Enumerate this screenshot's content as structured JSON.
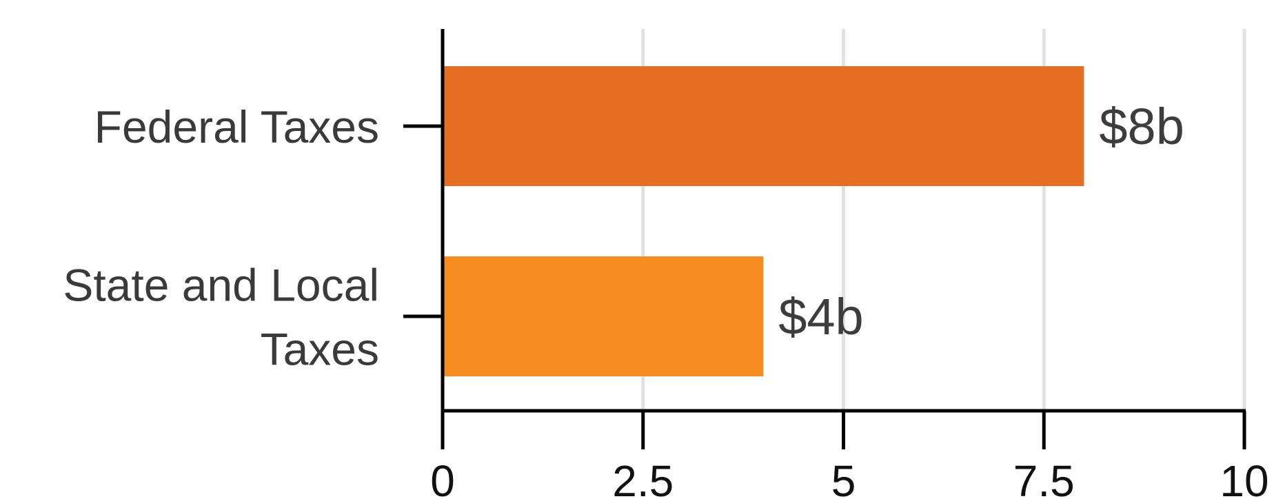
{
  "chart_data": {
    "type": "bar",
    "orientation": "horizontal",
    "categories": [
      [
        "Federal Taxes"
      ],
      [
        "State and Local",
        "Taxes"
      ]
    ],
    "values": [
      8,
      4
    ],
    "data_labels": [
      "$8b",
      "$4b"
    ],
    "colors": [
      "#e56e22",
      "#f68c1f"
    ],
    "xlim": [
      0,
      10
    ],
    "xticks": [
      0,
      2.5,
      5,
      7.5,
      10
    ],
    "xtick_labels": [
      "0",
      "2.5",
      "5",
      "7.5",
      "10"
    ],
    "grid": "vertical",
    "gridline_color": "#e2e2e2",
    "title": "",
    "xlabel": "",
    "ylabel": ""
  }
}
